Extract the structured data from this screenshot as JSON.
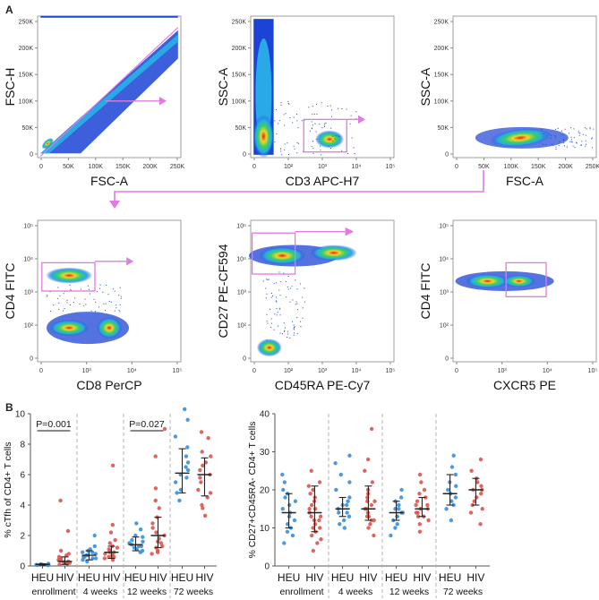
{
  "figure": {
    "panel_a_label": "A",
    "panel_b_label": "B",
    "gating": [
      {
        "id": "g1",
        "x_label": "FSC-A",
        "y_label": "FSC-H",
        "x_ticks": [
          "0",
          "50K",
          "100K",
          "150K",
          "200K",
          "250K"
        ],
        "y_ticks": [
          "0",
          "50K",
          "100K",
          "150K",
          "200K",
          "250K"
        ]
      },
      {
        "id": "g2",
        "x_label": "CD3 APC-H7",
        "y_label": "SSC-A",
        "x_ticks": [
          "0",
          "10²",
          "10³",
          "10⁴",
          "10⁵"
        ],
        "y_ticks": [
          "0",
          "50K",
          "100K",
          "150K",
          "200K",
          "250K"
        ]
      },
      {
        "id": "g3",
        "x_label": "FSC-A",
        "y_label": "SSC-A",
        "x_ticks": [
          "0",
          "50K",
          "100K",
          "150K",
          "200K",
          "250K"
        ],
        "y_ticks": [
          "0",
          "50K",
          "100K",
          "150K",
          "200K",
          "250K"
        ]
      },
      {
        "id": "g4",
        "x_label": "CD8 PerCP",
        "y_label": "CD4 FITC",
        "x_ticks": [
          "0",
          "10³",
          "10⁴",
          "10⁵"
        ],
        "y_ticks": [
          "0",
          "10²",
          "10³",
          "10⁴",
          "10⁵"
        ]
      },
      {
        "id": "g5",
        "x_label": "CD45RA PE-Cy7",
        "y_label": "CD27 PE-CF594",
        "x_ticks": [
          "0",
          "10²",
          "10³",
          "10⁴",
          "10⁵"
        ],
        "y_ticks": [
          "0",
          "10²",
          "10³",
          "10⁴",
          "10⁵"
        ]
      },
      {
        "id": "g6",
        "x_label": "CXCR5 PE",
        "y_label": "CD4 FITC",
        "x_ticks": [
          "0",
          "10³",
          "10⁴",
          "10⁵"
        ],
        "y_ticks": [
          "0",
          "10²",
          "10³",
          "10⁴",
          "10⁵"
        ]
      }
    ]
  },
  "chart_data": [
    {
      "type": "scatter",
      "title": "",
      "ylabel": "% cTfh of CD4+ T cells",
      "xlabel": "",
      "ylim": [
        0,
        10
      ],
      "y_ticks": [
        0,
        2,
        4,
        6,
        8,
        10
      ],
      "group_labels": [
        "HEU",
        "HIV",
        "HEU",
        "HIV",
        "HEU",
        "HIV",
        "HEU",
        "HIV"
      ],
      "timepoints": [
        "enrollment",
        "4 weeks",
        "12 weeks",
        "72 weeks"
      ],
      "annotations": [
        {
          "text": "P=0.001",
          "timepoint": "enrollment"
        },
        {
          "text": "P=0.027",
          "timepoint": "12 weeks"
        }
      ],
      "series": [
        {
          "name": "HEU enrollment",
          "color": "#3a8fd6",
          "median": 0.1,
          "q1": 0.05,
          "q3": 0.15,
          "values": [
            0.05,
            0.1,
            0.08,
            0.12,
            0.15,
            0.06
          ]
        },
        {
          "name": "HIV enrollment",
          "color": "#d9574f",
          "median": 0.3,
          "q1": 0.1,
          "q3": 0.6,
          "values": [
            0.1,
            0.2,
            0.3,
            0.4,
            0.5,
            0.6,
            0.8,
            1.0,
            0.2,
            0.15,
            0.35,
            0.25,
            0.45,
            0.7,
            4.3,
            2.3
          ]
        },
        {
          "name": "HEU 4 weeks",
          "color": "#3a8fd6",
          "median": 0.7,
          "q1": 0.4,
          "q3": 1.0,
          "values": [
            0.3,
            0.5,
            0.7,
            0.9,
            1.1,
            0.4,
            0.6,
            0.8,
            1.0,
            0.6,
            0.7,
            1.3,
            0.5,
            0.9,
            2.0
          ]
        },
        {
          "name": "HIV 4 weeks",
          "color": "#d9574f",
          "median": 0.9,
          "q1": 0.5,
          "q3": 1.3,
          "values": [
            0.4,
            0.6,
            0.8,
            1.0,
            1.2,
            0.5,
            0.7,
            0.9,
            1.1,
            1.3,
            1.5,
            0.9,
            1.7,
            2.2,
            2.7,
            6.6,
            0.6
          ]
        },
        {
          "name": "HEU 12 weeks",
          "color": "#3a8fd6",
          "median": 1.4,
          "q1": 1.0,
          "q3": 1.9,
          "values": [
            0.9,
            1.1,
            1.3,
            1.5,
            1.7,
            1.9,
            1.0,
            1.2,
            1.4,
            1.6,
            2.0,
            2.4,
            2.8,
            1.3
          ]
        },
        {
          "name": "HIV 12 weeks",
          "color": "#d9574f",
          "median": 2.0,
          "q1": 1.2,
          "q3": 3.2,
          "values": [
            0.8,
            1.0,
            1.2,
            1.5,
            1.8,
            2.0,
            2.2,
            2.5,
            2.8,
            3.2,
            3.8,
            4.3,
            5.1,
            7.2,
            9.0,
            1.6,
            1.3,
            0.9
          ]
        },
        {
          "name": "HEU 72 weeks",
          "color": "#3a8fd6",
          "median": 6.1,
          "q1": 4.8,
          "q3": 7.7,
          "values": [
            4.3,
            5.0,
            5.5,
            6.0,
            6.3,
            6.8,
            7.2,
            7.8,
            8.5,
            9.6,
            10.3,
            5.8,
            4.8,
            6.5
          ]
        },
        {
          "name": "HIV 72 weeks",
          "color": "#d9574f",
          "median": 6.0,
          "q1": 4.6,
          "q3": 7.1,
          "values": [
            3.3,
            4.0,
            4.5,
            5.0,
            5.5,
            6.0,
            6.3,
            6.8,
            7.2,
            7.5,
            8.4,
            8.8,
            4.8,
            5.8,
            6.6,
            3.8
          ]
        }
      ]
    },
    {
      "type": "scatter",
      "title": "",
      "ylabel": "% CD27+CD45RA- CD4+ T cells",
      "xlabel": "",
      "ylim": [
        0,
        40
      ],
      "y_ticks": [
        0,
        10,
        20,
        30,
        40
      ],
      "group_labels": [
        "HEU",
        "HIV",
        "HEU",
        "HIV",
        "HEU",
        "HIV",
        "HEU",
        "HIV"
      ],
      "timepoints": [
        "enrollment",
        "4 weeks",
        "12 weeks",
        "72 weeks"
      ],
      "annotations": [],
      "series": [
        {
          "name": "HEU enrollment",
          "color": "#3a8fd6",
          "median": 14,
          "q1": 10,
          "q3": 19,
          "values": [
            6,
            8,
            10,
            12,
            13,
            14,
            15,
            16,
            18,
            20,
            22,
            24,
            11,
            17,
            9,
            19
          ]
        },
        {
          "name": "HIV enrollment",
          "color": "#d9574f",
          "median": 14,
          "q1": 9,
          "q3": 21,
          "values": [
            4,
            6,
            8,
            9,
            10,
            11,
            12,
            13,
            14,
            15,
            16,
            18,
            19,
            20,
            21,
            22,
            7,
            25,
            13,
            10,
            17,
            12,
            15
          ]
        },
        {
          "name": "HEU 4 weeks",
          "color": "#3a8fd6",
          "median": 15,
          "q1": 13,
          "q3": 18,
          "values": [
            10,
            12,
            13,
            14,
            15,
            16,
            17,
            18,
            20,
            22,
            24,
            27,
            29,
            14,
            16,
            11
          ]
        },
        {
          "name": "HIV 4 weeks",
          "color": "#d9574f",
          "median": 15,
          "q1": 12,
          "q3": 21,
          "values": [
            8,
            10,
            11,
            12,
            13,
            14,
            15,
            16,
            17,
            18,
            19,
            20,
            22,
            25,
            28,
            36,
            13,
            15,
            12,
            17
          ]
        },
        {
          "name": "HEU 12 weeks",
          "color": "#3a8fd6",
          "median": 14,
          "q1": 12,
          "q3": 17,
          "values": [
            8,
            10,
            12,
            13,
            14,
            15,
            16,
            17,
            18,
            20,
            11,
            14,
            13,
            15
          ]
        },
        {
          "name": "HIV 12 weeks",
          "color": "#d9574f",
          "median": 15,
          "q1": 13,
          "q3": 18,
          "values": [
            9,
            11,
            12,
            13,
            14,
            15,
            16,
            17,
            18,
            19,
            20,
            22,
            24,
            14,
            16,
            13,
            15
          ]
        },
        {
          "name": "HEU 72 weeks",
          "color": "#3a8fd6",
          "median": 19,
          "q1": 16,
          "q3": 24,
          "values": [
            12,
            15,
            17,
            18,
            19,
            20,
            22,
            24,
            26,
            29,
            16,
            21
          ]
        },
        {
          "name": "HIV 72 weeks",
          "color": "#d9574f",
          "median": 20,
          "q1": 16,
          "q3": 23,
          "values": [
            11,
            14,
            16,
            18,
            19,
            20,
            21,
            22,
            23,
            25,
            28,
            17,
            20,
            15
          ]
        }
      ]
    }
  ]
}
